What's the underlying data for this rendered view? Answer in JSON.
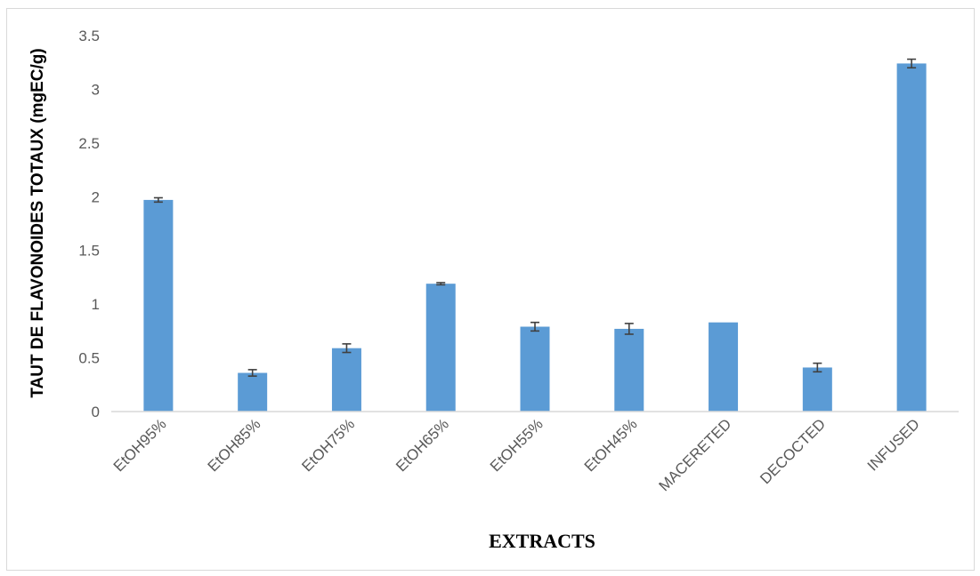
{
  "chart_data": {
    "type": "bar",
    "title": "",
    "xlabel": "EXTRACTS",
    "ylabel": "TAUT DE FLAVONOIDES TOTAUX (mgEC/g)",
    "categories": [
      "EtOH95%",
      "EtOH85%",
      "EtOH75%",
      "EtOH65%",
      "EtOH55%",
      "EtOH45%",
      "MACERETED",
      "DECOCTED",
      "INFUSED"
    ],
    "values": [
      1.97,
      0.36,
      0.59,
      1.19,
      0.79,
      0.77,
      0.83,
      0.41,
      3.24
    ],
    "errors": [
      0.02,
      0.03,
      0.04,
      0.01,
      0.04,
      0.05,
      0.0,
      0.04,
      0.04
    ],
    "ylim": [
      0,
      3.5
    ],
    "yticks": [
      0,
      0.5,
      1,
      1.5,
      2,
      2.5,
      3,
      3.5
    ],
    "ytick_labels": [
      "0",
      "0.5",
      "1",
      "1.5",
      "2",
      "2.5",
      "3",
      "3.5"
    ],
    "grid": false,
    "legend": "none",
    "colors": {
      "bar": "#5b9bd5",
      "error_bar": "#404040",
      "axis": "#d9d9d9"
    }
  }
}
